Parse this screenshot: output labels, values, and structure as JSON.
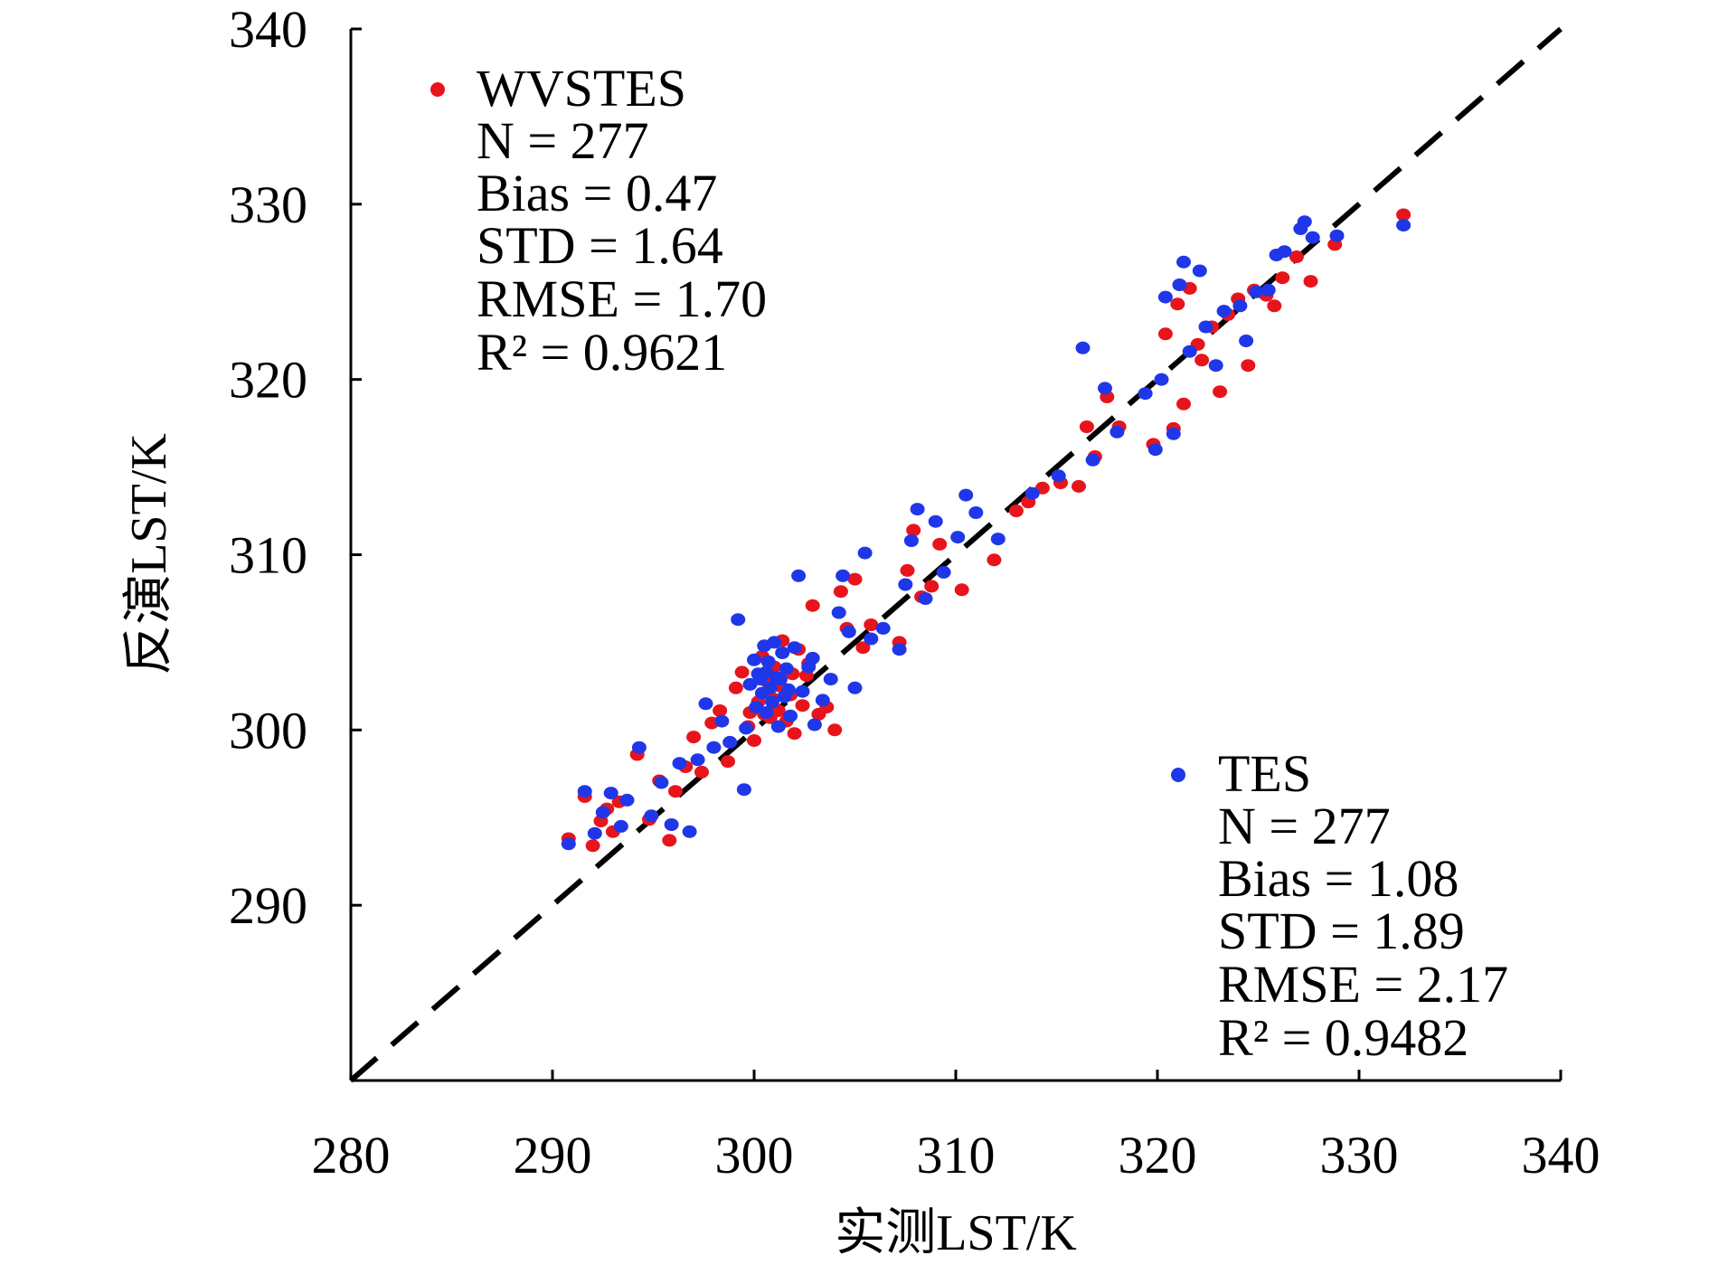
{
  "chart_data": {
    "type": "scatter",
    "xlabel": "实测LST/K",
    "ylabel": "反演LST/K",
    "xlim": [
      280,
      340
    ],
    "ylim": [
      280,
      340
    ],
    "x_ticks": [
      280,
      290,
      300,
      310,
      320,
      330,
      340
    ],
    "y_ticks": [
      290,
      300,
      310,
      320,
      330,
      340
    ],
    "grid": false,
    "reference_line": "1:1 dashed black",
    "series": [
      {
        "name": "WVSTES",
        "color": "#e8141c",
        "stats": {
          "n": "N = 277",
          "bias": "Bias = 0.47",
          "std": "STD = 1.64",
          "rmse": "RMSE = 1.70",
          "r2": "R² = 0.9621"
        },
        "points": [
          [
            290.8,
            293.8
          ],
          [
            291.6,
            296.2
          ],
          [
            292.0,
            293.4
          ],
          [
            292.4,
            294.8
          ],
          [
            292.7,
            295.5
          ],
          [
            293.0,
            294.2
          ],
          [
            293.3,
            295.9
          ],
          [
            294.2,
            298.6
          ],
          [
            294.8,
            294.9
          ],
          [
            295.3,
            297.1
          ],
          [
            295.8,
            293.7
          ],
          [
            296.1,
            296.5
          ],
          [
            296.6,
            297.9
          ],
          [
            297.0,
            299.6
          ],
          [
            297.4,
            297.6
          ],
          [
            297.9,
            300.4
          ],
          [
            298.3,
            301.1
          ],
          [
            298.7,
            298.2
          ],
          [
            299.1,
            302.4
          ],
          [
            299.4,
            303.3
          ],
          [
            299.7,
            300.2
          ],
          [
            300.0,
            299.4
          ],
          [
            300.2,
            301.6
          ],
          [
            300.4,
            304.2
          ],
          [
            300.6,
            302.8
          ],
          [
            300.8,
            300.7
          ],
          [
            301.0,
            303.6
          ],
          [
            301.2,
            301.1
          ],
          [
            301.4,
            305.1
          ],
          [
            301.6,
            300.5
          ],
          [
            301.8,
            302.0
          ],
          [
            302.0,
            299.8
          ],
          [
            302.2,
            304.6
          ],
          [
            302.4,
            301.4
          ],
          [
            302.6,
            303.1
          ],
          [
            302.9,
            307.1
          ],
          [
            303.2,
            300.9
          ],
          [
            303.6,
            301.3
          ],
          [
            304.0,
            300.0
          ],
          [
            304.3,
            307.9
          ],
          [
            304.6,
            305.8
          ],
          [
            305.0,
            308.6
          ],
          [
            305.4,
            304.7
          ],
          [
            305.8,
            306.0
          ],
          [
            307.2,
            305.0
          ],
          [
            307.6,
            309.1
          ],
          [
            307.9,
            311.4
          ],
          [
            308.3,
            307.6
          ],
          [
            308.8,
            308.2
          ],
          [
            309.2,
            310.6
          ],
          [
            310.3,
            308.0
          ],
          [
            311.9,
            309.7
          ],
          [
            313.0,
            312.5
          ],
          [
            313.6,
            313.0
          ],
          [
            314.3,
            313.8
          ],
          [
            315.2,
            314.1
          ],
          [
            316.1,
            313.9
          ],
          [
            316.5,
            317.3
          ],
          [
            316.9,
            315.6
          ],
          [
            317.5,
            319.0
          ],
          [
            318.1,
            317.3
          ],
          [
            319.8,
            316.3
          ],
          [
            320.4,
            322.6
          ],
          [
            320.8,
            317.2
          ],
          [
            321.0,
            324.3
          ],
          [
            321.3,
            318.6
          ],
          [
            321.6,
            325.2
          ],
          [
            322.0,
            322.0
          ],
          [
            322.2,
            321.1
          ],
          [
            322.7,
            323.0
          ],
          [
            323.1,
            319.3
          ],
          [
            323.5,
            323.7
          ],
          [
            324.0,
            324.6
          ],
          [
            324.5,
            320.8
          ],
          [
            324.8,
            325.1
          ],
          [
            325.4,
            324.8
          ],
          [
            325.8,
            324.2
          ],
          [
            326.2,
            325.8
          ],
          [
            326.9,
            327.0
          ],
          [
            327.6,
            325.6
          ],
          [
            328.8,
            327.7
          ],
          [
            332.2,
            329.4
          ],
          [
            300.9,
            301.8
          ],
          [
            301.3,
            302.5
          ],
          [
            300.5,
            300.9
          ],
          [
            302.7,
            303.8
          ],
          [
            299.8,
            301.0
          ],
          [
            301.9,
            303.2
          ]
        ]
      },
      {
        "name": "TES",
        "color": "#1f37e8",
        "stats": {
          "n": "N = 277",
          "bias": "Bias = 1.08",
          "std": "STD = 1.89",
          "rmse": "RMSE = 2.17",
          "r2": "R² = 0.9482"
        },
        "points": [
          [
            290.8,
            293.5
          ],
          [
            291.6,
            296.5
          ],
          [
            292.1,
            294.1
          ],
          [
            292.5,
            295.3
          ],
          [
            292.9,
            296.4
          ],
          [
            293.4,
            294.5
          ],
          [
            293.7,
            296.0
          ],
          [
            294.3,
            299.0
          ],
          [
            294.9,
            295.1
          ],
          [
            295.4,
            297.0
          ],
          [
            295.9,
            294.6
          ],
          [
            296.3,
            298.1
          ],
          [
            296.8,
            294.2
          ],
          [
            297.2,
            298.3
          ],
          [
            297.6,
            301.5
          ],
          [
            298.0,
            299.0
          ],
          [
            298.4,
            300.5
          ],
          [
            298.8,
            299.3
          ],
          [
            299.2,
            306.3
          ],
          [
            299.5,
            296.6
          ],
          [
            299.8,
            302.6
          ],
          [
            300.0,
            304.0
          ],
          [
            300.2,
            303.2
          ],
          [
            300.4,
            302.1
          ],
          [
            300.5,
            304.8
          ],
          [
            300.6,
            301.0
          ],
          [
            300.7,
            303.9
          ],
          [
            300.8,
            302.4
          ],
          [
            300.9,
            301.6
          ],
          [
            301.0,
            305.0
          ],
          [
            301.1,
            303.0
          ],
          [
            301.2,
            300.2
          ],
          [
            301.3,
            302.9
          ],
          [
            301.4,
            304.4
          ],
          [
            301.5,
            301.9
          ],
          [
            301.6,
            303.5
          ],
          [
            301.8,
            300.8
          ],
          [
            302.0,
            304.7
          ],
          [
            302.2,
            308.8
          ],
          [
            302.4,
            302.2
          ],
          [
            302.7,
            303.6
          ],
          [
            303.0,
            300.3
          ],
          [
            303.4,
            301.7
          ],
          [
            303.8,
            302.9
          ],
          [
            304.2,
            306.7
          ],
          [
            304.4,
            308.8
          ],
          [
            304.7,
            305.6
          ],
          [
            305.0,
            302.4
          ],
          [
            305.5,
            310.1
          ],
          [
            305.8,
            305.2
          ],
          [
            306.4,
            305.8
          ],
          [
            307.2,
            304.6
          ],
          [
            307.5,
            308.3
          ],
          [
            307.8,
            310.8
          ],
          [
            308.1,
            312.6
          ],
          [
            308.5,
            307.5
          ],
          [
            309.0,
            311.9
          ],
          [
            309.4,
            309.0
          ],
          [
            310.1,
            311.0
          ],
          [
            310.5,
            313.4
          ],
          [
            311.0,
            312.4
          ],
          [
            312.1,
            310.9
          ],
          [
            313.8,
            313.5
          ],
          [
            315.1,
            314.5
          ],
          [
            316.3,
            321.8
          ],
          [
            316.8,
            315.4
          ],
          [
            317.4,
            319.5
          ],
          [
            318.0,
            317.0
          ],
          [
            319.4,
            319.2
          ],
          [
            319.9,
            316.0
          ],
          [
            320.2,
            320.0
          ],
          [
            320.4,
            324.7
          ],
          [
            320.8,
            316.9
          ],
          [
            321.1,
            325.4
          ],
          [
            321.3,
            326.7
          ],
          [
            321.6,
            321.6
          ],
          [
            322.1,
            326.2
          ],
          [
            322.4,
            323.0
          ],
          [
            322.9,
            320.8
          ],
          [
            323.3,
            323.9
          ],
          [
            324.1,
            324.2
          ],
          [
            324.4,
            322.2
          ],
          [
            324.9,
            325.0
          ],
          [
            325.5,
            325.1
          ],
          [
            325.9,
            327.1
          ],
          [
            326.3,
            327.3
          ],
          [
            327.1,
            328.6
          ],
          [
            327.3,
            329.0
          ],
          [
            327.7,
            328.1
          ],
          [
            328.9,
            328.2
          ],
          [
            332.2,
            328.8
          ],
          [
            300.3,
            302.9
          ],
          [
            301.7,
            302.3
          ],
          [
            300.1,
            301.3
          ],
          [
            299.6,
            300.1
          ],
          [
            302.9,
            304.1
          ],
          [
            300.6,
            303.3
          ]
        ]
      }
    ]
  }
}
